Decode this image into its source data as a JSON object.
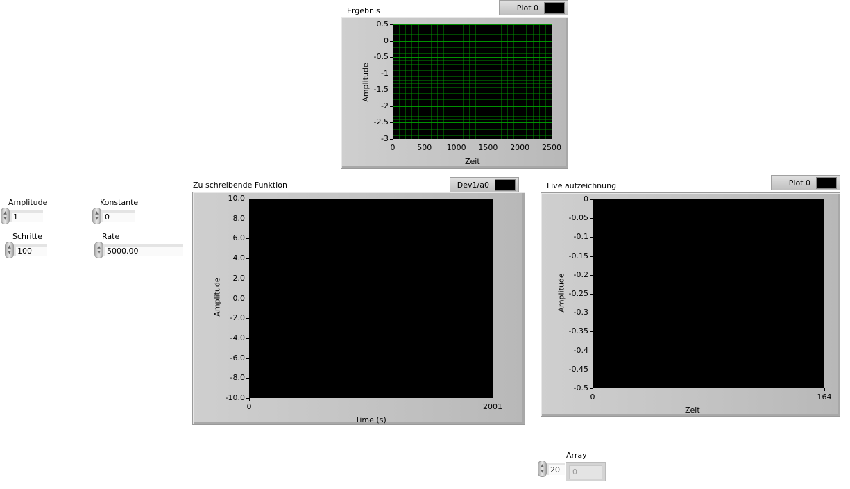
{
  "controls": {
    "amplitude": {
      "label": "Amplitude",
      "value": "1"
    },
    "konstante": {
      "label": "Konstante",
      "value": "0"
    },
    "schritte": {
      "label": "Schritte",
      "value": "100"
    },
    "rate": {
      "label": "Rate",
      "value": "5000.00"
    },
    "array": {
      "label": "Array",
      "index": "20",
      "element": "0"
    }
  },
  "chart_data": [
    {
      "type": "line",
      "title": "Ergebnis",
      "legend": "Plot 0",
      "xlabel": "Zeit",
      "ylabel": "Amplitude",
      "xlim": [
        0,
        2500
      ],
      "ylim": [
        -3,
        0.5
      ],
      "xticks": [
        "0",
        "500",
        "1000",
        "1500",
        "2000",
        "2500"
      ],
      "yticks": [
        "0.5",
        "0",
        "-0.5",
        "-1",
        "-1.5",
        "-2",
        "-2.5",
        "-3"
      ],
      "grid": true,
      "grid_color": "#00a000",
      "series": []
    },
    {
      "type": "line",
      "title": "Zu schreibende Funktion",
      "legend": "Dev1/a0",
      "xlabel": "Time (s)",
      "ylabel": "Amplitude",
      "xlim": [
        0,
        2001
      ],
      "ylim": [
        -10,
        10
      ],
      "xticks": [
        "0",
        "2001"
      ],
      "yticks": [
        "10.0",
        "8.0",
        "6.0",
        "4.0",
        "2.0",
        "0.0",
        "-2.0",
        "-4.0",
        "-6.0",
        "-8.0",
        "-10.0"
      ],
      "grid": false,
      "series": []
    },
    {
      "type": "line",
      "title": "Live aufzeichnung",
      "legend": "Plot 0",
      "xlabel": "Zeit",
      "ylabel": "Amplitude",
      "xlim": [
        0,
        164
      ],
      "ylim": [
        -0.5,
        0
      ],
      "xticks": [
        "0",
        "164"
      ],
      "yticks": [
        "0",
        "-0.05",
        "-0.1",
        "-0.15",
        "-0.2",
        "-0.25",
        "-0.3",
        "-0.35",
        "-0.4",
        "-0.45",
        "-0.5"
      ],
      "grid": false,
      "series": []
    }
  ]
}
